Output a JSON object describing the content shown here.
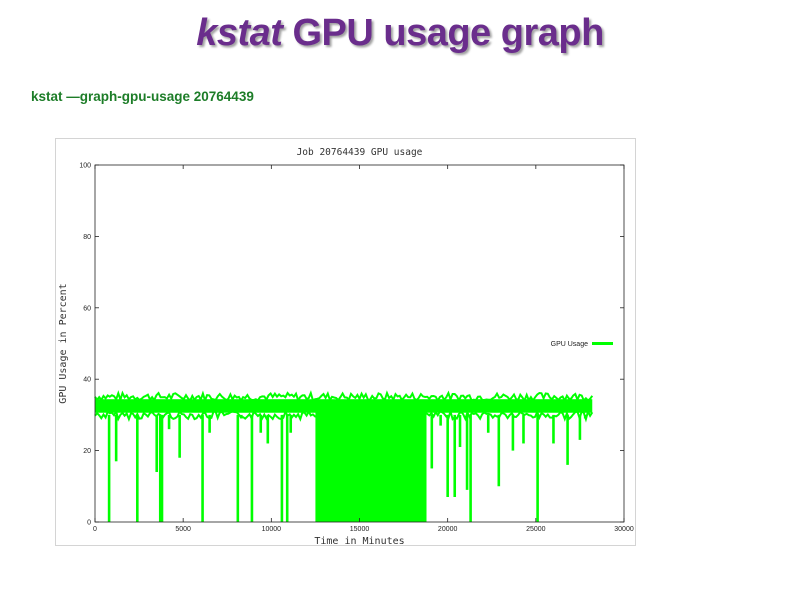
{
  "slide": {
    "title_cmd": "kstat",
    "title_rest": " GPU usage graph",
    "command": "kstat —graph-gpu-usage 20764439"
  },
  "colors": {
    "title": "#6a2d8c",
    "command": "#1d7d28",
    "series": "#00ff00"
  },
  "chart_data": {
    "type": "line",
    "title": "Job 20764439 GPU usage",
    "xlabel": "Time in Minutes",
    "ylabel": "GPU Usage in Percent",
    "xlim": [
      0,
      30000
    ],
    "ylim": [
      0,
      100
    ],
    "xticks": [
      0,
      5000,
      10000,
      15000,
      20000,
      25000,
      30000
    ],
    "yticks": [
      0,
      20,
      40,
      60,
      80,
      100
    ],
    "grid": false,
    "legend_position": "right",
    "series": [
      {
        "name": "GPU Usage",
        "color": "#00ff00",
        "baseline_band": [
          30,
          35
        ],
        "x_range": [
          0,
          28200
        ],
        "dense_zero_region": [
          12500,
          18800
        ],
        "drops": [
          {
            "x": 800,
            "y": 0
          },
          {
            "x": 1200,
            "y": 17
          },
          {
            "x": 2400,
            "y": 0
          },
          {
            "x": 3500,
            "y": 14
          },
          {
            "x": 3700,
            "y": 0
          },
          {
            "x": 3800,
            "y": 0
          },
          {
            "x": 4200,
            "y": 26
          },
          {
            "x": 4800,
            "y": 18
          },
          {
            "x": 6100,
            "y": 0
          },
          {
            "x": 6500,
            "y": 25
          },
          {
            "x": 8100,
            "y": 0
          },
          {
            "x": 8300,
            "y": 29
          },
          {
            "x": 8900,
            "y": 0
          },
          {
            "x": 9400,
            "y": 25
          },
          {
            "x": 9800,
            "y": 22
          },
          {
            "x": 10600,
            "y": 0
          },
          {
            "x": 10900,
            "y": 0
          },
          {
            "x": 11100,
            "y": 25
          },
          {
            "x": 19100,
            "y": 15
          },
          {
            "x": 19600,
            "y": 27
          },
          {
            "x": 20000,
            "y": 7
          },
          {
            "x": 20400,
            "y": 7
          },
          {
            "x": 20700,
            "y": 21
          },
          {
            "x": 21100,
            "y": 9
          },
          {
            "x": 21300,
            "y": 0
          },
          {
            "x": 22300,
            "y": 25
          },
          {
            "x": 22900,
            "y": 10
          },
          {
            "x": 23700,
            "y": 20
          },
          {
            "x": 24300,
            "y": 22
          },
          {
            "x": 25100,
            "y": 0
          },
          {
            "x": 26000,
            "y": 22
          },
          {
            "x": 26800,
            "y": 16
          },
          {
            "x": 27500,
            "y": 23
          },
          {
            "x": 27800,
            "y": 29
          }
        ]
      }
    ]
  }
}
